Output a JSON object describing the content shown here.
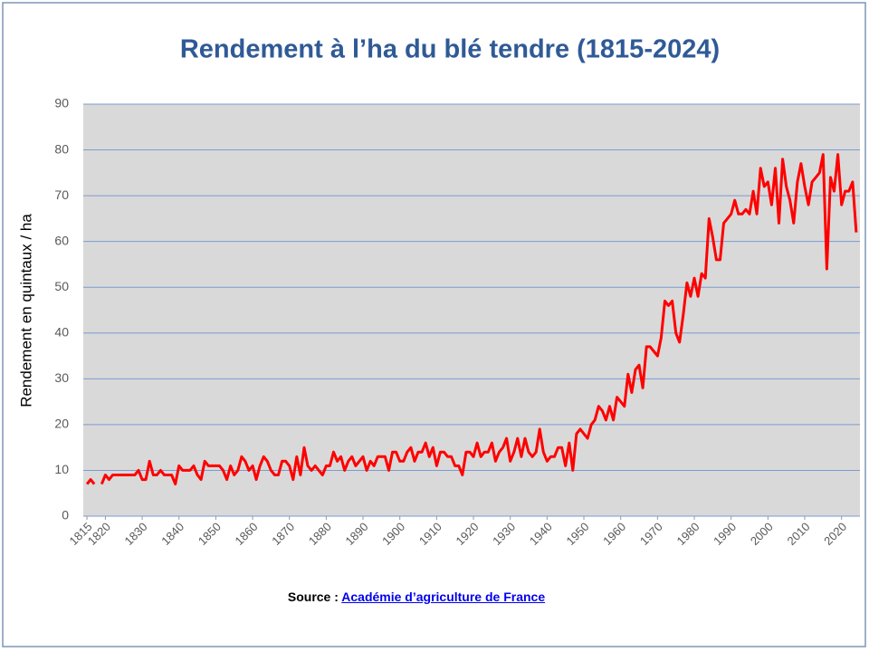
{
  "chart_data": {
    "type": "line",
    "title": "Rendement à l’ha du blé tendre (1815-2024)",
    "y_label": "Rendement en quintaux / ha",
    "source_prefix": "Source :",
    "source_link": "Académie d’agriculture de France",
    "x": [
      1815,
      1816,
      1817,
      1818,
      1819,
      1820,
      1821,
      1822,
      1823,
      1824,
      1825,
      1826,
      1827,
      1828,
      1829,
      1830,
      1831,
      1832,
      1833,
      1834,
      1835,
      1836,
      1837,
      1838,
      1839,
      1840,
      1841,
      1842,
      1843,
      1844,
      1845,
      1846,
      1847,
      1848,
      1849,
      1850,
      1851,
      1852,
      1853,
      1854,
      1855,
      1856,
      1857,
      1858,
      1859,
      1860,
      1861,
      1862,
      1863,
      1864,
      1865,
      1866,
      1867,
      1868,
      1869,
      1870,
      1871,
      1872,
      1873,
      1874,
      1875,
      1876,
      1877,
      1878,
      1879,
      1880,
      1881,
      1882,
      1883,
      1884,
      1885,
      1886,
      1887,
      1888,
      1889,
      1890,
      1891,
      1892,
      1893,
      1894,
      1895,
      1896,
      1897,
      1898,
      1899,
      1900,
      1901,
      1902,
      1903,
      1904,
      1905,
      1906,
      1907,
      1908,
      1909,
      1910,
      1911,
      1912,
      1913,
      1914,
      1915,
      1916,
      1917,
      1918,
      1919,
      1920,
      1921,
      1922,
      1923,
      1924,
      1925,
      1926,
      1927,
      1928,
      1929,
      1930,
      1931,
      1932,
      1933,
      1934,
      1935,
      1936,
      1937,
      1938,
      1939,
      1940,
      1941,
      1942,
      1943,
      1944,
      1945,
      1946,
      1947,
      1948,
      1949,
      1950,
      1951,
      1952,
      1953,
      1954,
      1955,
      1956,
      1957,
      1958,
      1959,
      1960,
      1961,
      1962,
      1963,
      1964,
      1965,
      1966,
      1967,
      1968,
      1969,
      1970,
      1971,
      1972,
      1973,
      1974,
      1975,
      1976,
      1977,
      1978,
      1979,
      1980,
      1981,
      1982,
      1983,
      1984,
      1985,
      1986,
      1987,
      1988,
      1989,
      1990,
      1991,
      1992,
      1993,
      1994,
      1995,
      1996,
      1997,
      1998,
      1999,
      2000,
      2001,
      2002,
      2003,
      2004,
      2005,
      2006,
      2007,
      2008,
      2009,
      2010,
      2011,
      2012,
      2013,
      2014,
      2015,
      2016,
      2017,
      2018,
      2019,
      2020,
      2021,
      2022,
      2023,
      2024
    ],
    "series": [
      {
        "name": "Rendement",
        "color": "#ff0000",
        "values": [
          7,
          8,
          7,
          null,
          7,
          9,
          8,
          9,
          9,
          9,
          9,
          9,
          9,
          9,
          10,
          8,
          8,
          12,
          9,
          9,
          10,
          9,
          9,
          9,
          7,
          11,
          10,
          10,
          10,
          11,
          9,
          8,
          12,
          11,
          11,
          11,
          11,
          10,
          8,
          11,
          9,
          10,
          13,
          12,
          10,
          11,
          8,
          11,
          13,
          12,
          10,
          9,
          9,
          12,
          12,
          11,
          8,
          13,
          9,
          15,
          11,
          10,
          11,
          10,
          9,
          11,
          11,
          14,
          12,
          13,
          10,
          12,
          13,
          11,
          12,
          13,
          10,
          12,
          11,
          13,
          13,
          13,
          10,
          14,
          14,
          12,
          12,
          14,
          15,
          12,
          14,
          14,
          16,
          13,
          15,
          11,
          14,
          14,
          13,
          13,
          11,
          11,
          9,
          14,
          14,
          13,
          16,
          13,
          14,
          14,
          16,
          12,
          14,
          15,
          17,
          12,
          14,
          17,
          13,
          17,
          14,
          13,
          14,
          19,
          14,
          12,
          13,
          13,
          15,
          15,
          11,
          16,
          10,
          18,
          19,
          18,
          17,
          20,
          21,
          24,
          23,
          21,
          24,
          21,
          26,
          25,
          24,
          31,
          27,
          32,
          33,
          28,
          37,
          37,
          36,
          35,
          39,
          47,
          46,
          47,
          40,
          38,
          44,
          51,
          48,
          52,
          48,
          53,
          52,
          65,
          61,
          56,
          56,
          64,
          65,
          66,
          69,
          66,
          66,
          67,
          66,
          71,
          66,
          76,
          72,
          73,
          68,
          76,
          64,
          78,
          72,
          69,
          64,
          73,
          77,
          72,
          68,
          73,
          74,
          75,
          79,
          54,
          74,
          71,
          79,
          68,
          71,
          71,
          73,
          62
        ]
      }
    ],
    "xlim": [
      1814,
      2025
    ],
    "xticks": [
      1815,
      1820,
      1830,
      1840,
      1850,
      1860,
      1870,
      1880,
      1890,
      1900,
      1910,
      1920,
      1930,
      1940,
      1950,
      1960,
      1970,
      1980,
      1990,
      2000,
      2010,
      2020
    ],
    "ylim": [
      0,
      90
    ],
    "yticks": [
      0,
      10,
      20,
      30,
      40,
      50,
      60,
      70,
      80,
      90
    ],
    "grid": true
  }
}
